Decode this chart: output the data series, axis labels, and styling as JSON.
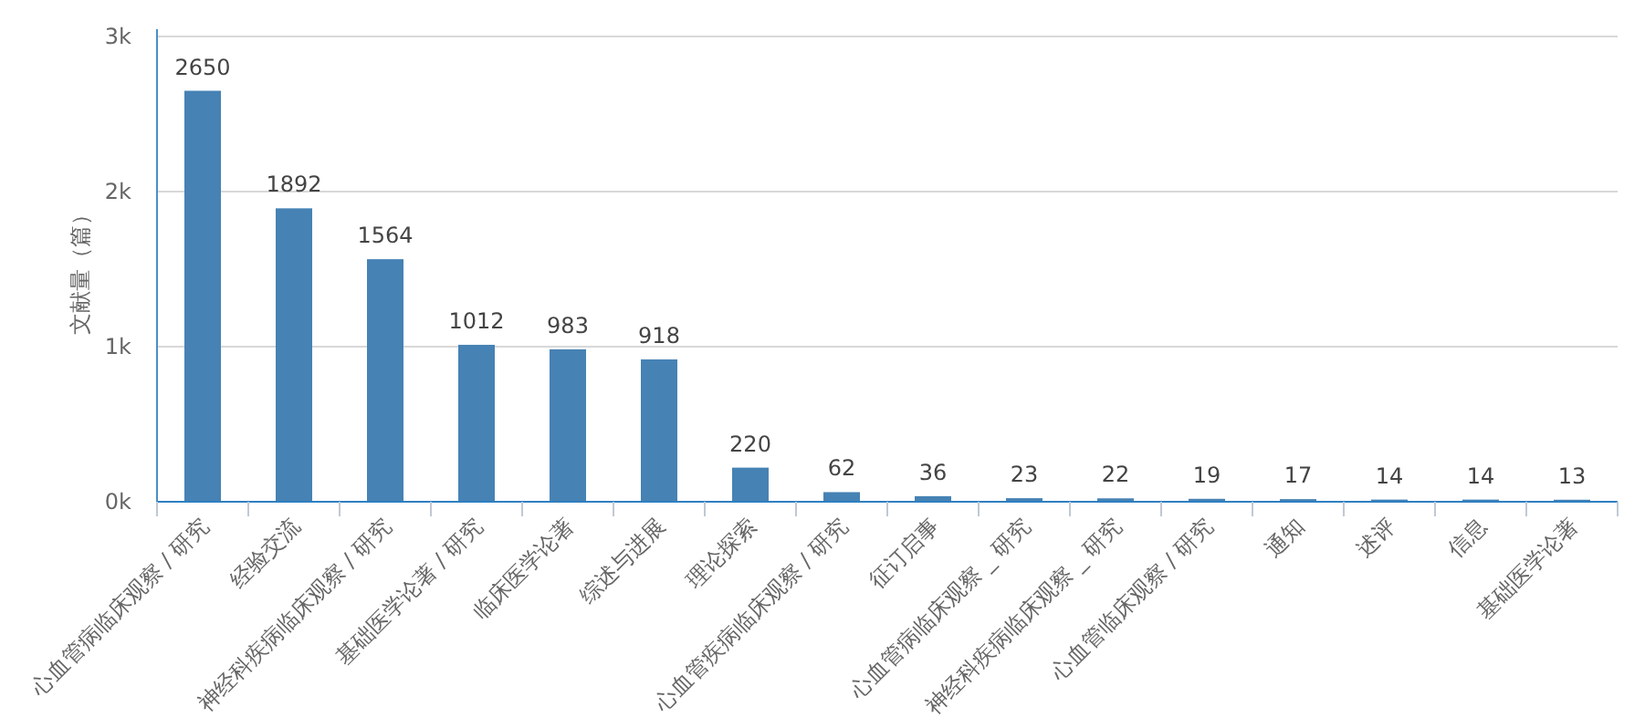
{
  "chart_data": {
    "type": "bar",
    "ylabel": "文献量（篇）",
    "categories": [
      "心血管病临床观察 / 研究",
      "经验交流",
      "神经科疾病临床观察 / 研究",
      "基础医学论著 / 研究",
      "临床医学论著",
      "综述与进展",
      "理论探索",
      "心血管疾病临床观察 / 研究",
      "征订启事",
      "心血管病临床观察 _ 研究",
      "神经科疾病临床观察 _ 研究",
      "心血管临床观察 / 研究",
      "通知",
      "述评",
      "信息",
      "基础医学论著"
    ],
    "values": [
      2650,
      1892,
      1564,
      1012,
      983,
      918,
      220,
      62,
      36,
      23,
      22,
      19,
      17,
      14,
      14,
      13
    ],
    "color": "#4682b4",
    "data_labels": true,
    "grid": "y",
    "ylim": [
      0,
      3000
    ],
    "yticks": [
      {
        "value": 0,
        "label": "0k"
      },
      {
        "value": 1000,
        "label": "1k"
      },
      {
        "value": 2000,
        "label": "2k"
      },
      {
        "value": 3000,
        "label": "3k"
      }
    ]
  }
}
